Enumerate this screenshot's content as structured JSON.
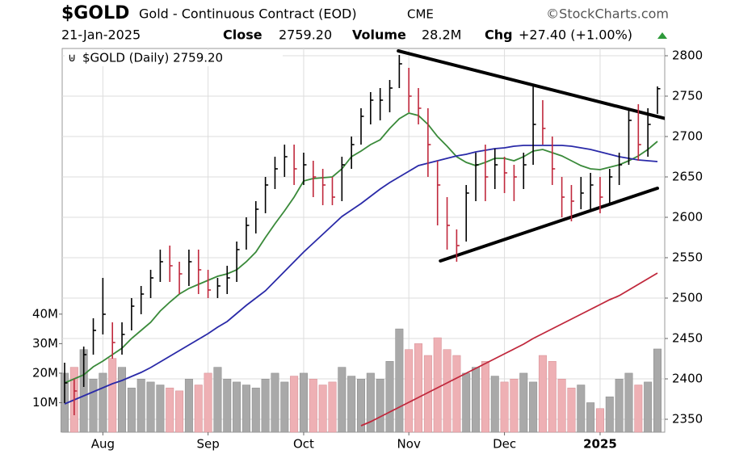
{
  "chart_data": {
    "type": "ohlc",
    "title": "$GOLD",
    "subtitle": "Gold - Continuous Contract (EOD)",
    "exchange": "CME",
    "source": "©StockCharts.com",
    "date": "21-Jan-2025",
    "quote": {
      "close_label": "Close",
      "close": "2759.20",
      "volume_label": "Volume",
      "volume": "28.2M",
      "change_label": "Chg",
      "change": "+27.40 (+1.00%)"
    },
    "categories": [
      null,
      null,
      null,
      null,
      "Aug",
      null,
      null,
      null,
      null,
      null,
      null,
      null,
      null,
      null,
      null,
      "Sep",
      null,
      null,
      null,
      null,
      null,
      null,
      null,
      null,
      null,
      "Oct",
      null,
      null,
      null,
      null,
      null,
      null,
      null,
      null,
      null,
      null,
      "Nov",
      null,
      null,
      null,
      null,
      null,
      null,
      null,
      null,
      null,
      "Dec",
      null,
      null,
      null,
      null,
      null,
      null,
      null,
      null,
      null,
      "2025",
      null,
      null,
      null,
      null,
      null,
      null
    ],
    "ylim": [
      2334,
      2809
    ],
    "yticks": [
      2350,
      2400,
      2450,
      2500,
      2550,
      2600,
      2650,
      2700,
      2750,
      2800
    ],
    "vlim": [
      0,
      130
    ],
    "vticks": [
      {
        "value": 10,
        "label": "10M"
      },
      {
        "value": 20,
        "label": "20M"
      },
      {
        "value": 30,
        "label": "30M"
      },
      {
        "value": 40,
        "label": "40M"
      }
    ],
    "grid": true,
    "price": {
      "name": "$GOLD (Daily) 2759.20",
      "up_color": "#000000",
      "down_color": "#c0283c",
      "high": [
        2420,
        2400,
        2440,
        2475,
        2525,
        2470,
        2470,
        2500,
        2515,
        2535,
        2560,
        2565,
        2545,
        2560,
        2560,
        2535,
        2525,
        2540,
        2570,
        2600,
        2620,
        2650,
        2675,
        2690,
        2690,
        2680,
        2670,
        2660,
        2650,
        2675,
        2700,
        2735,
        2755,
        2760,
        2770,
        2801,
        2785,
        2760,
        2735,
        2670,
        2625,
        2585,
        2640,
        2680,
        2690,
        2685,
        2675,
        2665,
        2680,
        2762,
        2745,
        2700,
        2650,
        2640,
        2650,
        2655,
        2650,
        2660,
        2680,
        2735,
        2740,
        2735,
        2762
      ],
      "low": [
        2370,
        2355,
        2390,
        2430,
        2455,
        2425,
        2430,
        2460,
        2480,
        2500,
        2520,
        2520,
        2505,
        2515,
        2505,
        2500,
        2500,
        2505,
        2520,
        2560,
        2580,
        2605,
        2635,
        2650,
        2640,
        2640,
        2625,
        2615,
        2615,
        2620,
        2660,
        2690,
        2715,
        2720,
        2730,
        2760,
        2730,
        2715,
        2650,
        2590,
        2560,
        2545,
        2570,
        2620,
        2620,
        2635,
        2630,
        2620,
        2635,
        2665,
        2690,
        2640,
        2600,
        2595,
        2610,
        2610,
        2605,
        2615,
        2640,
        2665,
        2670,
        2675,
        2728
      ],
      "close": [
        2395,
        2385,
        2430,
        2460,
        2480,
        2445,
        2455,
        2490,
        2505,
        2525,
        2545,
        2540,
        2530,
        2545,
        2535,
        2510,
        2515,
        2525,
        2560,
        2590,
        2610,
        2640,
        2660,
        2675,
        2660,
        2665,
        2650,
        2640,
        2625,
        2665,
        2690,
        2725,
        2745,
        2745,
        2760,
        2790,
        2750,
        2735,
        2690,
        2640,
        2590,
        2565,
        2630,
        2665,
        2650,
        2665,
        2655,
        2650,
        2665,
        2715,
        2710,
        2660,
        2625,
        2620,
        2630,
        2640,
        2625,
        2650,
        2665,
        2720,
        2690,
        2715,
        2759.2
      ]
    },
    "volume": {
      "up_color": "#a9a9a9",
      "down_color": "#eeb0b4",
      "values": [
        20,
        22,
        28,
        18,
        20,
        25,
        22,
        15,
        18,
        17,
        16,
        15,
        14,
        18,
        16,
        20,
        22,
        18,
        17,
        16,
        15,
        18,
        20,
        17,
        19,
        20,
        18,
        16,
        17,
        22,
        19,
        18,
        20,
        18,
        24,
        35,
        28,
        30,
        26,
        32,
        28,
        26,
        20,
        22,
        24,
        19,
        17,
        18,
        20,
        17,
        26,
        24,
        18,
        15,
        16,
        10,
        8,
        12,
        18,
        20,
        16,
        17,
        28.2
      ]
    },
    "moving_averages": [
      {
        "color": "#3a8a3a",
        "values": [
          2395,
          2400,
          2405,
          2415,
          2422,
          2430,
          2438,
          2450,
          2460,
          2470,
          2484,
          2495,
          2505,
          2512,
          2517,
          2522,
          2527,
          2530,
          2535,
          2545,
          2557,
          2575,
          2592,
          2608,
          2625,
          2645,
          2648,
          2649,
          2650,
          2660,
          2675,
          2682,
          2690,
          2696,
          2710,
          2722,
          2729,
          2726,
          2715,
          2700,
          2688,
          2675,
          2668,
          2664,
          2668,
          2673,
          2673,
          2670,
          2675,
          2682,
          2684,
          2680,
          2676,
          2670,
          2664,
          2660,
          2659,
          2662,
          2665,
          2670,
          2676,
          2684,
          2694
        ]
      },
      {
        "color": "#2a2aa8",
        "values": [
          2369,
          2374,
          2379,
          2384,
          2389,
          2394,
          2398,
          2403,
          2408,
          2414,
          2421,
          2428,
          2435,
          2442,
          2449,
          2456,
          2464,
          2471,
          2481,
          2491,
          2500,
          2509,
          2521,
          2533,
          2545,
          2557,
          2568,
          2579,
          2590,
          2601,
          2609,
          2617,
          2626,
          2635,
          2643,
          2650,
          2657,
          2664,
          2667,
          2670,
          2673,
          2676,
          2678,
          2681,
          2683,
          2685,
          2686,
          2688,
          2689,
          2689,
          2689,
          2689,
          2689,
          2688,
          2686,
          2684,
          2681,
          2678,
          2675,
          2673,
          2671,
          2670,
          2669
        ]
      },
      {
        "color": "#c0283c",
        "values": [
          null,
          null,
          null,
          null,
          null,
          null,
          null,
          null,
          null,
          null,
          null,
          null,
          null,
          null,
          null,
          null,
          null,
          null,
          null,
          null,
          null,
          null,
          null,
          null,
          null,
          null,
          null,
          null,
          null,
          null,
          null,
          2342,
          2347,
          2353,
          2359,
          2365,
          2371,
          2377,
          2383,
          2389,
          2395,
          2401,
          2407,
          2413,
          2419,
          2425,
          2431,
          2437,
          2443,
          2450,
          2456,
          2462,
          2468,
          2474,
          2480,
          2486,
          2492,
          2498,
          2503,
          2510,
          2517,
          2524,
          2531
        ]
      }
    ],
    "trendlines": [
      {
        "color": "#000000",
        "x": [
          34.9,
          62.9
        ],
        "y": [
          2806,
          2722
        ]
      },
      {
        "color": "#000000",
        "x": [
          39.3,
          62.0
        ],
        "y": [
          2546,
          2636
        ]
      }
    ]
  }
}
